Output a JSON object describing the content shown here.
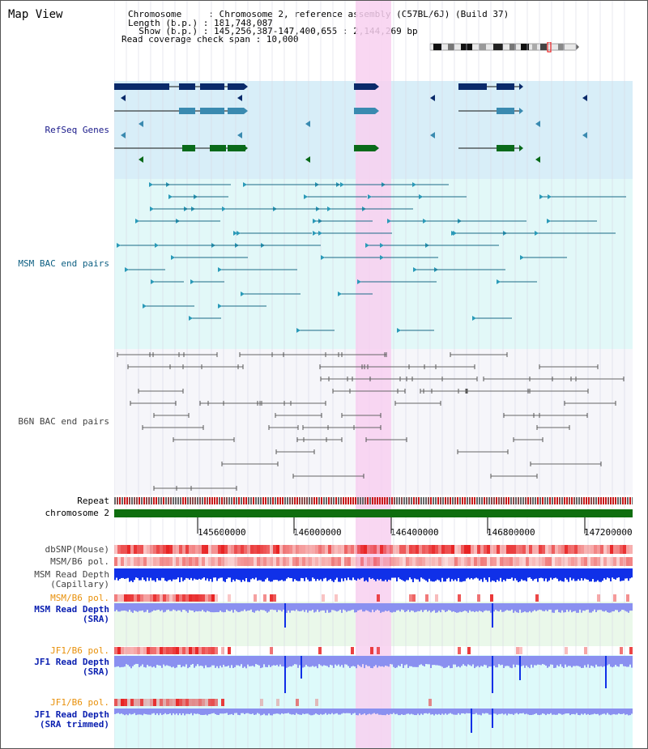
{
  "title": "Map View",
  "info": {
    "line1": "Chromosome     : Chromosome 2, reference assembly (C57BL/6J) (Build 37)",
    "line2": "Length (b.p.) : 181,748,087",
    "line3": "  Show (b.p.) : 145,256,387-147,400,655 : 2,144,269 bp",
    "line4": "Read coverage check span : 10,000"
  },
  "tracks": {
    "refseq": "RefSeq Genes",
    "msm_bac": "MSM BAC end pairs",
    "b6n_bac": "B6N BAC end pairs",
    "repeat": "Repeat",
    "chromosome": "chromosome 2",
    "dbsnp": "dbSNP(Mouse)",
    "msm_pol1": "MSM/B6 pol.",
    "msm_depth_cap": "MSM Read Depth\n(Capillary)",
    "msm_pol2": "MSM/B6 pol.",
    "msm_depth_sra": "MSM Read Depth\n(SRA)",
    "jf1_pol1": "JF1/B6 pol.",
    "jf1_depth_sra": "JF1 Read Depth\n(SRA)",
    "jf1_pol2": "JF1/B6 pol.",
    "jf1_depth_trim": "JF1 Read Depth\n(SRA trimmed)"
  },
  "axis_ticks": [
    "145600000",
    "146000000",
    "146400000",
    "146800000",
    "147200000"
  ],
  "colors": {
    "highlight": "#f8d0f0",
    "refseq_bg": "#d8eef8",
    "msm_bg": "#e2f8f8",
    "b6n_bg": "#f6f6fa",
    "chromosome": "#0f6e0f",
    "depth_blue": "#1030e8",
    "depth_light": "#8a90f0",
    "snp_red": "#e82020"
  }
}
